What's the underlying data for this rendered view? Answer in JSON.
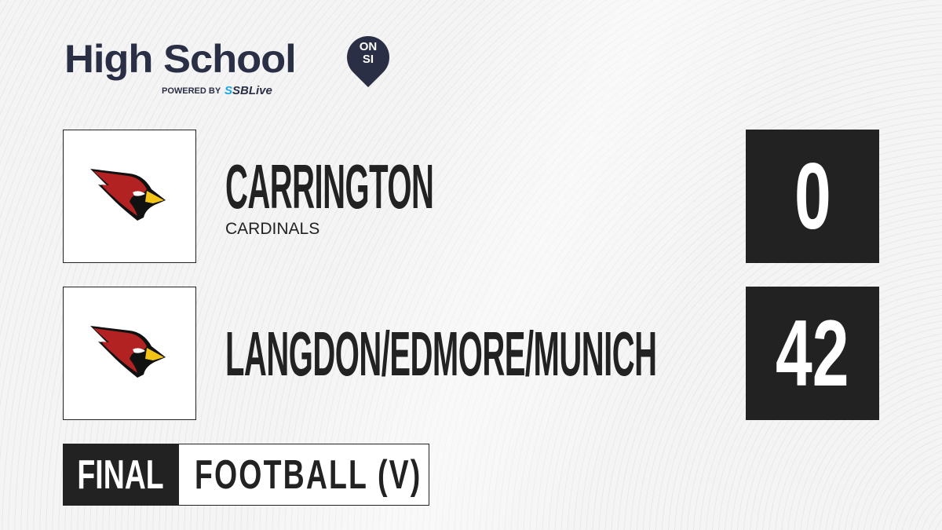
{
  "brand": {
    "title": "High School",
    "badge_top": "ON",
    "badge_bottom": "SI",
    "powered_by": "POWERED BY",
    "partner_prefix": "S",
    "partner": "SBLive",
    "accent": "#2b2f45",
    "partner_color": "#1aa6e0"
  },
  "teams": [
    {
      "name": "CARRINGTON",
      "mascot": "CARDINALS",
      "score": "0",
      "logo": "cardinal-icon"
    },
    {
      "name": "LANGDON/EDMORE/MUNICH",
      "mascot": "",
      "score": "42",
      "logo": "cardinal-icon"
    }
  ],
  "status": "FINAL",
  "sport": "FOOTBALL (V)"
}
